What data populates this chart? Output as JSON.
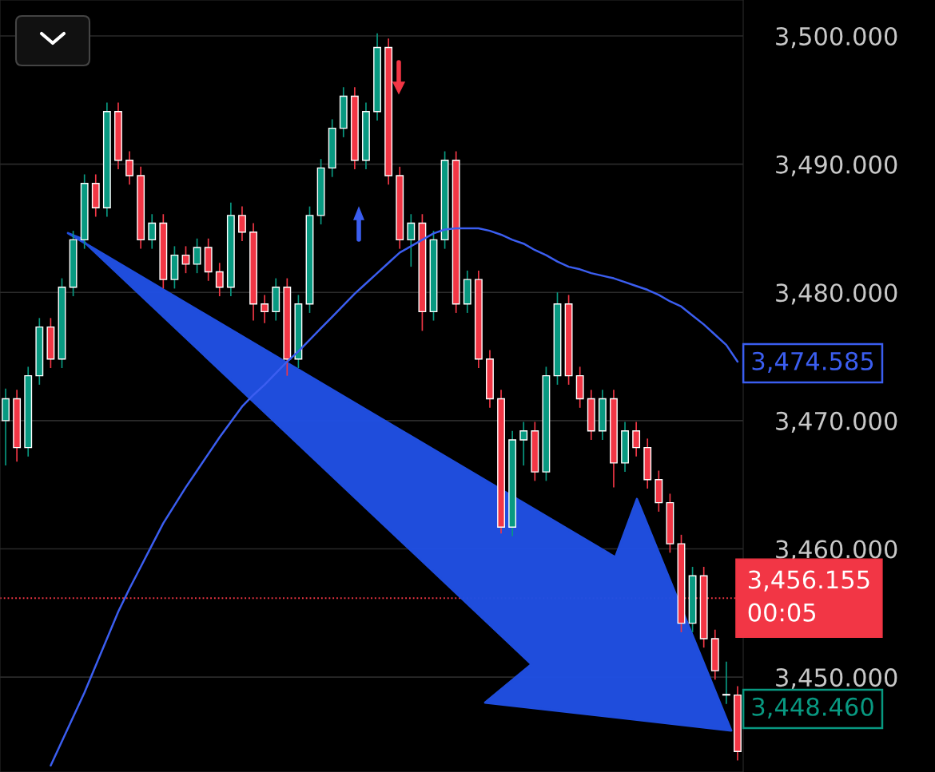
{
  "chart_data": {
    "type": "candlestick",
    "categories": [
      null,
      null,
      null,
      null,
      null,
      null,
      null,
      null,
      null,
      null,
      null,
      null,
      null,
      null,
      null,
      null,
      null,
      null,
      null,
      null,
      null,
      null,
      null,
      null,
      null,
      null,
      null,
      null,
      null,
      null,
      null,
      null,
      null,
      null,
      null,
      null,
      null,
      null,
      null,
      null,
      null,
      null,
      null,
      null,
      null,
      null,
      null,
      null,
      null,
      null,
      null,
      null,
      null,
      null,
      null,
      null,
      null,
      null,
      null,
      null,
      null,
      null,
      null,
      null,
      null,
      null
    ],
    "ohlc": [
      [
        3470.0,
        3472.5,
        3466.5,
        3471.7
      ],
      [
        3471.7,
        3472.4,
        3466.8,
        3467.9
      ],
      [
        3467.9,
        3474.2,
        3467.2,
        3473.5
      ],
      [
        3473.5,
        3478.0,
        3472.8,
        3477.3
      ],
      [
        3477.3,
        3478.0,
        3474.1,
        3474.8
      ],
      [
        3474.8,
        3481.1,
        3474.1,
        3480.4
      ],
      [
        3480.4,
        3484.8,
        3479.7,
        3484.1
      ],
      [
        3484.1,
        3489.2,
        3483.4,
        3488.5
      ],
      [
        3488.5,
        3489.2,
        3485.9,
        3486.6
      ],
      [
        3486.6,
        3494.8,
        3485.9,
        3494.1
      ],
      [
        3494.1,
        3494.8,
        3489.6,
        3490.3
      ],
      [
        3490.3,
        3491.0,
        3488.4,
        3489.1
      ],
      [
        3489.1,
        3489.8,
        3483.4,
        3484.1
      ],
      [
        3484.1,
        3486.1,
        3483.4,
        3485.4
      ],
      [
        3485.4,
        3486.1,
        3480.3,
        3481.0
      ],
      [
        3481.0,
        3483.6,
        3480.3,
        3482.9
      ],
      [
        3482.9,
        3483.6,
        3481.5,
        3482.2
      ],
      [
        3482.2,
        3484.2,
        3481.5,
        3483.5
      ],
      [
        3483.5,
        3484.2,
        3480.9,
        3481.6
      ],
      [
        3481.6,
        3482.3,
        3479.7,
        3480.4
      ],
      [
        3480.4,
        3487.0,
        3479.7,
        3486.0
      ],
      [
        3486.0,
        3486.7,
        3484.0,
        3484.7
      ],
      [
        3484.7,
        3485.4,
        3477.8,
        3479.1
      ],
      [
        3479.1,
        3479.8,
        3477.6,
        3478.5
      ],
      [
        3478.5,
        3481.1,
        3477.8,
        3480.4
      ],
      [
        3480.4,
        3481.1,
        3473.5,
        3474.8
      ],
      [
        3474.8,
        3479.8,
        3474.1,
        3479.1
      ],
      [
        3479.1,
        3486.7,
        3478.4,
        3486.0
      ],
      [
        3486.0,
        3490.4,
        3485.3,
        3489.7
      ],
      [
        3489.7,
        3493.5,
        3489.0,
        3492.8
      ],
      [
        3492.8,
        3496.0,
        3492.1,
        3495.3
      ],
      [
        3495.3,
        3496.0,
        3489.6,
        3490.3
      ],
      [
        3490.3,
        3494.8,
        3489.6,
        3494.1
      ],
      [
        3494.1,
        3500.2,
        3493.4,
        3499.1
      ],
      [
        3499.1,
        3499.8,
        3488.4,
        3489.1
      ],
      [
        3489.1,
        3489.8,
        3483.4,
        3484.1
      ],
      [
        3484.1,
        3486.1,
        3482.0,
        3485.4
      ],
      [
        3485.4,
        3486.1,
        3477.0,
        3478.5
      ],
      [
        3478.5,
        3484.8,
        3477.8,
        3484.1
      ],
      [
        3484.1,
        3491.0,
        3483.4,
        3490.3
      ],
      [
        3490.3,
        3491.0,
        3478.4,
        3479.1
      ],
      [
        3479.1,
        3481.7,
        3478.4,
        3481.0
      ],
      [
        3481.0,
        3481.7,
        3474.1,
        3474.8
      ],
      [
        3474.8,
        3475.5,
        3471.0,
        3471.7
      ],
      [
        3471.7,
        3472.4,
        3461.2,
        3461.7
      ],
      [
        3461.7,
        3469.2,
        3461.0,
        3468.5
      ],
      [
        3468.5,
        3469.9,
        3466.5,
        3469.2
      ],
      [
        3469.2,
        3469.9,
        3465.3,
        3466.0
      ],
      [
        3466.0,
        3474.2,
        3465.3,
        3473.5
      ],
      [
        3473.5,
        3480.0,
        3472.8,
        3479.1
      ],
      [
        3479.1,
        3479.8,
        3472.8,
        3473.5
      ],
      [
        3473.5,
        3474.2,
        3471.0,
        3471.7
      ],
      [
        3471.7,
        3472.4,
        3468.5,
        3469.2
      ],
      [
        3469.2,
        3472.4,
        3468.5,
        3471.7
      ],
      [
        3471.7,
        3472.4,
        3464.8,
        3466.7
      ],
      [
        3466.7,
        3469.9,
        3466.0,
        3469.2
      ],
      [
        3469.2,
        3469.9,
        3467.2,
        3467.9
      ],
      [
        3467.9,
        3468.6,
        3464.7,
        3465.4
      ],
      [
        3465.4,
        3466.1,
        3462.9,
        3463.6
      ],
      [
        3463.6,
        3464.3,
        3459.7,
        3460.4
      ],
      [
        3460.4,
        3461.1,
        3453.5,
        3454.2
      ],
      [
        3454.2,
        3458.6,
        3453.5,
        3457.9
      ],
      [
        3457.9,
        3458.6,
        3452.3,
        3453.0
      ],
      [
        3453.0,
        3453.7,
        3449.8,
        3450.5
      ],
      [
        3448.6,
        3451.2,
        3447.9,
        3448.6
      ],
      [
        3448.6,
        3449.3,
        3443.5,
        3444.2
      ]
    ],
    "series": [
      {
        "type": "line",
        "color": "#3b5ef0",
        "values": [
          null,
          null,
          null,
          null,
          3443.1,
          3445.0,
          3446.9,
          3448.8,
          3450.9,
          3453.0,
          3455.1,
          3456.9,
          3458.6,
          3460.3,
          3462.0,
          3463.4,
          3464.8,
          3466.1,
          3467.4,
          3468.7,
          3469.9,
          3471.1,
          3472.0,
          3472.8,
          3473.7,
          3474.6,
          3475.4,
          3476.3,
          3477.2,
          3478.1,
          3479.0,
          3479.9,
          3480.7,
          3481.5,
          3482.3,
          3483.1,
          3483.6,
          3484.1,
          3484.6,
          3484.9,
          3485.0,
          3485.0,
          3485.0,
          3484.8,
          3484.5,
          3484.1,
          3483.8,
          3483.3,
          3482.9,
          3482.4,
          3482.0,
          3481.8,
          3481.5,
          3481.3,
          3481.1,
          3480.8,
          3480.5,
          3480.2,
          3479.8,
          3479.3,
          3478.9,
          3478.2,
          3477.5,
          3476.7,
          3475.9,
          3474.6
        ]
      }
    ],
    "ylim": [
      3442.6,
      3502.8
    ],
    "yticks": [
      {
        "value": 3450,
        "label": "3,450.000"
      },
      {
        "value": 3460,
        "label": "3,460.000"
      },
      {
        "value": 3470,
        "label": "3,470.000"
      },
      {
        "value": 3480,
        "label": "3,480.000"
      },
      {
        "value": 3490,
        "label": "3,490.000"
      },
      {
        "value": 3500,
        "label": "3,500.000"
      }
    ],
    "tick_labels": "y",
    "grid": "y",
    "ref_lines": [
      {
        "axis": "y",
        "value": 3456.155,
        "label": "3,456.155\n00:05",
        "color": "#f23645",
        "line_style": "dotted"
      }
    ],
    "annotations": [
      "3,474.585",
      "3,448.460"
    ]
  }
}
